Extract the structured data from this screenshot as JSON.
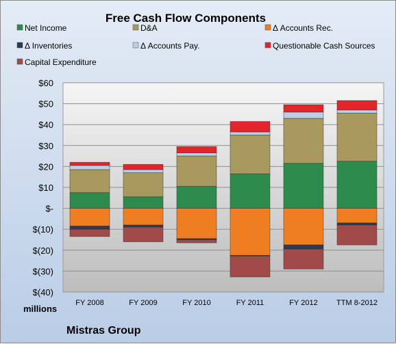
{
  "chart_data": {
    "type": "bar",
    "stacked": true,
    "title": "Free Cash Flow Components",
    "ylabel": "",
    "xlabel": "",
    "unit_label": "millions",
    "footer": "Mistras Group",
    "ylim": [
      -40,
      60
    ],
    "yticks": [
      60,
      50,
      40,
      30,
      20,
      10,
      0,
      -10,
      -20,
      -30,
      -40
    ],
    "ytick_labels": [
      "$60",
      "$50",
      "$40",
      "$30",
      "$20",
      "$10",
      "$-",
      "$(10)",
      "$(20)",
      "$(30)",
      "$(40)"
    ],
    "categories": [
      "FY 2008",
      "FY 2009",
      "FY 2010",
      "FY 2011",
      "FY 2012",
      "TTM 8-2012"
    ],
    "legend_position": "top",
    "grid": true,
    "series": [
      {
        "name": "Net Income",
        "color": "#2e8b4e",
        "values": [
          7.5,
          5.5,
          10.5,
          16.5,
          21.5,
          22.5
        ]
      },
      {
        "name": "D&A",
        "color": "#a89a5e",
        "values": [
          11,
          11.5,
          14.5,
          18.5,
          21.5,
          23
        ]
      },
      {
        "name": "Δ Accounts Rec.",
        "color": "#ef7d22",
        "values": [
          -8.5,
          -8,
          -14.5,
          -22.5,
          -17.5,
          -7
        ]
      },
      {
        "name": "Δ Inventories",
        "color": "#2a3b55",
        "values": [
          -1.5,
          -1,
          -0.5,
          -0.3,
          -2,
          -1
        ]
      },
      {
        "name": "Δ Accounts Pay.",
        "color": "#b9cfe6",
        "values": [
          2,
          1.5,
          1.5,
          1.5,
          3,
          1.5
        ]
      },
      {
        "name": "Questionable Cash Sources",
        "color": "#e3252b",
        "values": [
          1.5,
          2.5,
          3,
          5,
          3.5,
          4.5
        ]
      },
      {
        "name": "Capital Expenditure",
        "color": "#a04a4a",
        "values": [
          -3.5,
          -7,
          -1.5,
          -10,
          -9.5,
          -9.5
        ]
      }
    ]
  }
}
